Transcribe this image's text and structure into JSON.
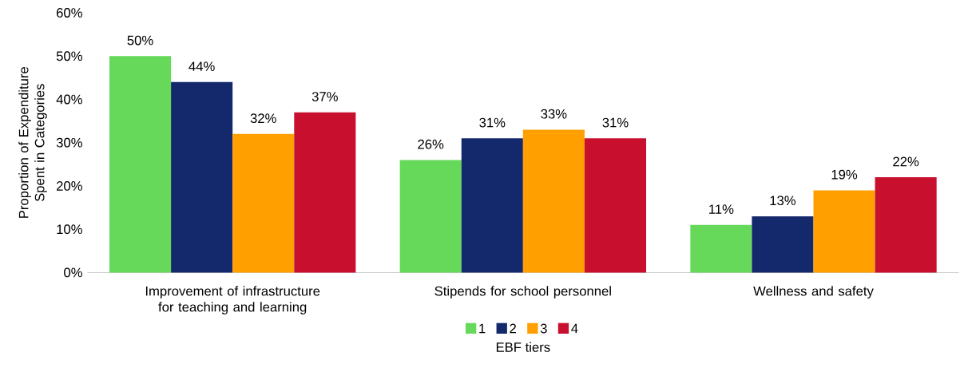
{
  "chart_data": {
    "type": "bar",
    "ylabel": "Proportion of Expenditure Spent in Categories",
    "legend_title": "EBF tiers",
    "categories": [
      "Improvement of infrastructure for teaching and learning",
      "Stipends for school personnel",
      "Wellness and safety"
    ],
    "series": [
      {
        "name": "1",
        "color": "#66d95b",
        "values": [
          50,
          26,
          11
        ],
        "value_labels": [
          "50%",
          "26%",
          "11%"
        ]
      },
      {
        "name": "2",
        "color": "#13296b",
        "values": [
          44,
          31,
          13
        ],
        "value_labels": [
          "44%",
          "31%",
          "13%"
        ]
      },
      {
        "name": "3",
        "color": "#ffa000",
        "values": [
          32,
          33,
          19
        ],
        "value_labels": [
          "32%",
          "33%",
          "19%"
        ]
      },
      {
        "name": "4",
        "color": "#c8102e",
        "values": [
          37,
          31,
          22
        ],
        "value_labels": [
          "37%",
          "31%",
          "22%"
        ]
      }
    ],
    "ylim": [
      0,
      60
    ],
    "yticks": [
      {
        "value": 0,
        "label": "0%"
      },
      {
        "value": 10,
        "label": "10%"
      },
      {
        "value": 20,
        "label": "20%"
      },
      {
        "value": 30,
        "label": "30%"
      },
      {
        "value": 40,
        "label": "40%"
      },
      {
        "value": 50,
        "label": "50%"
      },
      {
        "value": 60,
        "label": "60%"
      }
    ],
    "legend": "bottom",
    "grid": false
  }
}
